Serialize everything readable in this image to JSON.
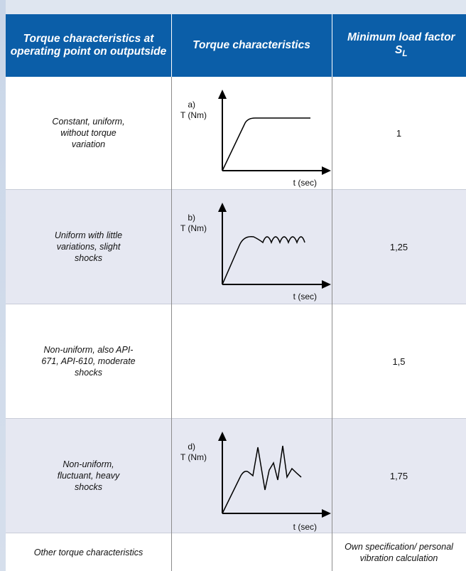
{
  "header": {
    "col1": "Torque characteristics at operating point on outputside",
    "col2": "Torque characteristics",
    "col3_line1": "Minimum load factor",
    "col3_symbol": "S",
    "col3_sub": "L"
  },
  "rows": [
    {
      "description": "Constant, uniform, without torque variation",
      "diagram": {
        "tag": "a)",
        "ylabel": "T (Nm)",
        "xlabel": "t (sec)",
        "shape": "constant"
      },
      "factor": "1"
    },
    {
      "description": "Uniform with little variations, slight shocks",
      "diagram": {
        "tag": "b)",
        "ylabel": "T (Nm)",
        "xlabel": "t (sec)",
        "shape": "slight-variation"
      },
      "factor": "1,25"
    },
    {
      "description": "Non-uniform, also API-671, API-610, moderate shocks",
      "diagram": null,
      "factor": "1,5"
    },
    {
      "description": "Non-uniform, fluctuant, heavy shocks",
      "diagram": {
        "tag": "d)",
        "ylabel": "T (Nm)",
        "xlabel": "t (sec)",
        "shape": "heavy-shocks"
      },
      "factor": "1,75"
    },
    {
      "description": "Other torque characteristics",
      "diagram": null,
      "factor": "Own specification/ personal vibration calculation"
    }
  ]
}
